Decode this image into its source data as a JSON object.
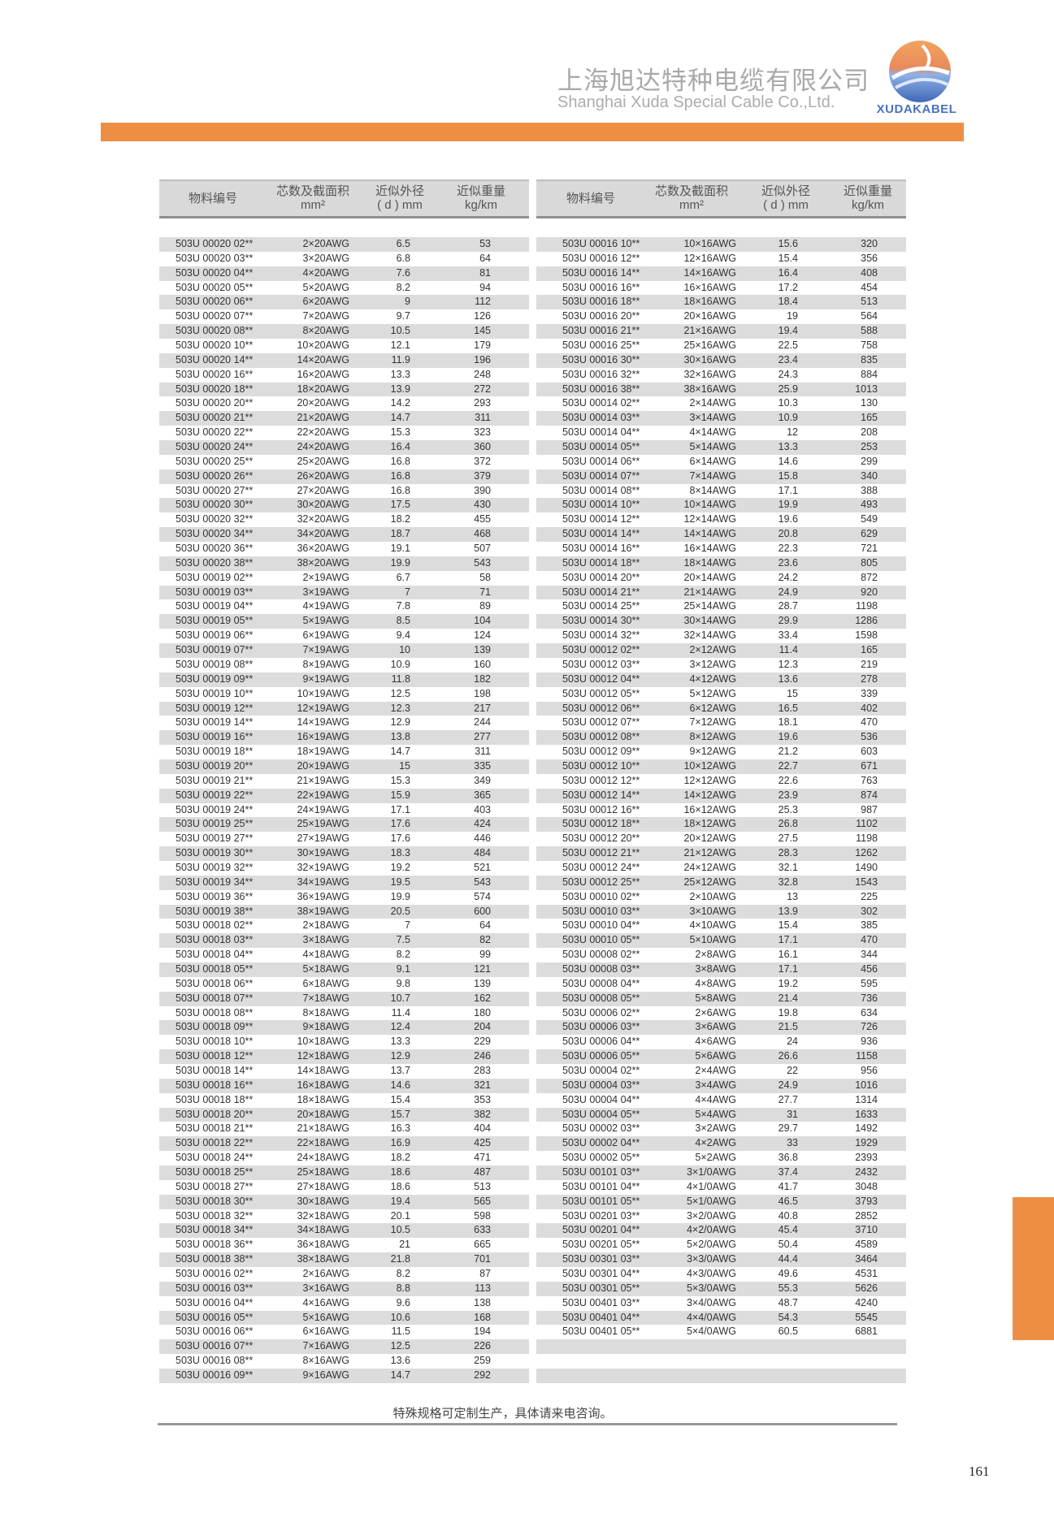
{
  "header": {
    "company_cn": "上海旭达特种电缆有限公司",
    "company_en": "Shanghai Xuda Special Cable Co.,Ltd.",
    "logo_text": "XUDAKABEL",
    "accent_color": "#ec8f45"
  },
  "table": {
    "columns": [
      {
        "line1": "物料编号",
        "line2": ""
      },
      {
        "line1": "芯数及截面积",
        "line2": "mm²"
      },
      {
        "line1": "近似外径",
        "line2": "( d ) mm"
      },
      {
        "line1": "近似重量",
        "line2": "kg/km"
      }
    ],
    "left_rows": [
      [
        "503U 00020 02**",
        "2×20AWG",
        "6.5",
        "53"
      ],
      [
        "503U 00020 03**",
        "3×20AWG",
        "6.8",
        "64"
      ],
      [
        "503U 00020 04**",
        "4×20AWG",
        "7.6",
        "81"
      ],
      [
        "503U 00020 05**",
        "5×20AWG",
        "8.2",
        "94"
      ],
      [
        "503U 00020 06**",
        "6×20AWG",
        "9",
        "112"
      ],
      [
        "503U 00020 07**",
        "7×20AWG",
        "9.7",
        "126"
      ],
      [
        "503U 00020 08**",
        "8×20AWG",
        "10.5",
        "145"
      ],
      [
        "503U 00020 10**",
        "10×20AWG",
        "12.1",
        "179"
      ],
      [
        "503U 00020 14**",
        "14×20AWG",
        "11.9",
        "196"
      ],
      [
        "503U 00020 16**",
        "16×20AWG",
        "13.3",
        "248"
      ],
      [
        "503U 00020 18**",
        "18×20AWG",
        "13.9",
        "272"
      ],
      [
        "503U 00020 20**",
        "20×20AWG",
        "14.2",
        "293"
      ],
      [
        "503U 00020 21**",
        "21×20AWG",
        "14.7",
        "311"
      ],
      [
        "503U 00020 22**",
        "22×20AWG",
        "15.3",
        "323"
      ],
      [
        "503U 00020 24**",
        "24×20AWG",
        "16.4",
        "360"
      ],
      [
        "503U 00020 25**",
        "25×20AWG",
        "16.8",
        "372"
      ],
      [
        "503U 00020 26**",
        "26×20AWG",
        "16.8",
        "379"
      ],
      [
        "503U 00020 27**",
        "27×20AWG",
        "16.8",
        "390"
      ],
      [
        "503U 00020 30**",
        "30×20AWG",
        "17.5",
        "430"
      ],
      [
        "503U 00020 32**",
        "32×20AWG",
        "18.2",
        "455"
      ],
      [
        "503U 00020 34**",
        "34×20AWG",
        "18.7",
        "468"
      ],
      [
        "503U 00020 36**",
        "36×20AWG",
        "19.1",
        "507"
      ],
      [
        "503U 00020 38**",
        "38×20AWG",
        "19.9",
        "543"
      ],
      [
        "503U 00019 02**",
        "2×19AWG",
        "6.7",
        "58"
      ],
      [
        "503U 00019 03**",
        "3×19AWG",
        "7",
        "71"
      ],
      [
        "503U 00019 04**",
        "4×19AWG",
        "7.8",
        "89"
      ],
      [
        "503U 00019 05**",
        "5×19AWG",
        "8.5",
        "104"
      ],
      [
        "503U 00019 06**",
        "6×19AWG",
        "9.4",
        "124"
      ],
      [
        "503U 00019 07**",
        "7×19AWG",
        "10",
        "139"
      ],
      [
        "503U 00019 08**",
        "8×19AWG",
        "10.9",
        "160"
      ],
      [
        "503U 00019 09**",
        "9×19AWG",
        "11.8",
        "182"
      ],
      [
        "503U 00019 10**",
        "10×19AWG",
        "12.5",
        "198"
      ],
      [
        "503U 00019 12**",
        "12×19AWG",
        "12.3",
        "217"
      ],
      [
        "503U 00019 14**",
        "14×19AWG",
        "12.9",
        "244"
      ],
      [
        "503U 00019 16**",
        "16×19AWG",
        "13.8",
        "277"
      ],
      [
        "503U 00019 18**",
        "18×19AWG",
        "14.7",
        "311"
      ],
      [
        "503U 00019 20**",
        "20×19AWG",
        "15",
        "335"
      ],
      [
        "503U 00019 21**",
        "21×19AWG",
        "15.3",
        "349"
      ],
      [
        "503U 00019 22**",
        "22×19AWG",
        "15.9",
        "365"
      ],
      [
        "503U 00019 24**",
        "24×19AWG",
        "17.1",
        "403"
      ],
      [
        "503U 00019 25**",
        "25×19AWG",
        "17.6",
        "424"
      ],
      [
        "503U 00019 27**",
        "27×19AWG",
        "17.6",
        "446"
      ],
      [
        "503U 00019 30**",
        "30×19AWG",
        "18.3",
        "484"
      ],
      [
        "503U 00019 32**",
        "32×19AWG",
        "19.2",
        "521"
      ],
      [
        "503U 00019 34**",
        "34×19AWG",
        "19.5",
        "543"
      ],
      [
        "503U 00019 36**",
        "36×19AWG",
        "19.9",
        "574"
      ],
      [
        "503U 00019 38**",
        "38×19AWG",
        "20.5",
        "600"
      ],
      [
        "503U 00018 02**",
        "2×18AWG",
        "7",
        "64"
      ],
      [
        "503U 00018 03**",
        "3×18AWG",
        "7.5",
        "82"
      ],
      [
        "503U 00018 04**",
        "4×18AWG",
        "8.2",
        "99"
      ],
      [
        "503U 00018 05**",
        "5×18AWG",
        "9.1",
        "121"
      ],
      [
        "503U 00018 06**",
        "6×18AWG",
        "9.8",
        "139"
      ],
      [
        "503U 00018 07**",
        "7×18AWG",
        "10.7",
        "162"
      ],
      [
        "503U 00018 08**",
        "8×18AWG",
        "11.4",
        "180"
      ],
      [
        "503U 00018 09**",
        "9×18AWG",
        "12.4",
        "204"
      ],
      [
        "503U 00018 10**",
        "10×18AWG",
        "13.3",
        "229"
      ],
      [
        "503U 00018 12**",
        "12×18AWG",
        "12.9",
        "246"
      ],
      [
        "503U 00018 14**",
        "14×18AWG",
        "13.7",
        "283"
      ],
      [
        "503U 00018 16**",
        "16×18AWG",
        "14.6",
        "321"
      ],
      [
        "503U 00018 18**",
        "18×18AWG",
        "15.4",
        "353"
      ],
      [
        "503U 00018 20**",
        "20×18AWG",
        "15.7",
        "382"
      ],
      [
        "503U 00018 21**",
        "21×18AWG",
        "16.3",
        "404"
      ],
      [
        "503U 00018 22**",
        "22×18AWG",
        "16.9",
        "425"
      ],
      [
        "503U 00018 24**",
        "24×18AWG",
        "18.2",
        "471"
      ],
      [
        "503U 00018 25**",
        "25×18AWG",
        "18.6",
        "487"
      ],
      [
        "503U 00018 27**",
        "27×18AWG",
        "18.6",
        "513"
      ],
      [
        "503U 00018 30**",
        "30×18AWG",
        "19.4",
        "565"
      ],
      [
        "503U 00018 32**",
        "32×18AWG",
        "20.1",
        "598"
      ],
      [
        "503U 00018 34**",
        "34×18AWG",
        "10.5",
        "633"
      ],
      [
        "503U 00018 36**",
        "36×18AWG",
        "21",
        "665"
      ],
      [
        "503U 00018 38**",
        "38×18AWG",
        "21.8",
        "701"
      ],
      [
        "503U 00016 02**",
        "2×16AWG",
        "8.2",
        "87"
      ],
      [
        "503U 00016 03**",
        "3×16AWG",
        "8.8",
        "113"
      ],
      [
        "503U 00016 04**",
        "4×16AWG",
        "9.6",
        "138"
      ],
      [
        "503U 00016 05**",
        "5×16AWG",
        "10.6",
        "168"
      ],
      [
        "503U 00016 06**",
        "6×16AWG",
        "11.5",
        "194"
      ],
      [
        "503U 00016 07**",
        "7×16AWG",
        "12.5",
        "226"
      ],
      [
        "503U 00016 08**",
        "8×16AWG",
        "13.6",
        "259"
      ],
      [
        "503U 00016 09**",
        "9×16AWG",
        "14.7",
        "292"
      ]
    ],
    "right_rows": [
      [
        "503U 00016 10**",
        "10×16AWG",
        "15.6",
        "320"
      ],
      [
        "503U 00016 12**",
        "12×16AWG",
        "15.4",
        "356"
      ],
      [
        "503U 00016 14**",
        "14×16AWG",
        "16.4",
        "408"
      ],
      [
        "503U 00016 16**",
        "16×16AWG",
        "17.2",
        "454"
      ],
      [
        "503U 00016 18**",
        "18×16AWG",
        "18.4",
        "513"
      ],
      [
        "503U 00016 20**",
        "20×16AWG",
        "19",
        "564"
      ],
      [
        "503U 00016 21**",
        "21×16AWG",
        "19.4",
        "588"
      ],
      [
        "503U 00016 25**",
        "25×16AWG",
        "22.5",
        "758"
      ],
      [
        "503U 00016 30**",
        "30×16AWG",
        "23.4",
        "835"
      ],
      [
        "503U 00016 32**",
        "32×16AWG",
        "24.3",
        "884"
      ],
      [
        "503U 00016 38**",
        "38×16AWG",
        "25.9",
        "1013"
      ],
      [
        "503U 00014 02**",
        "2×14AWG",
        "10.3",
        "130"
      ],
      [
        "503U 00014 03**",
        "3×14AWG",
        "10.9",
        "165"
      ],
      [
        "503U 00014 04**",
        "4×14AWG",
        "12",
        "208"
      ],
      [
        "503U 00014 05**",
        "5×14AWG",
        "13.3",
        "253"
      ],
      [
        "503U 00014 06**",
        "6×14AWG",
        "14.6",
        "299"
      ],
      [
        "503U 00014 07**",
        "7×14AWG",
        "15.8",
        "340"
      ],
      [
        "503U 00014 08**",
        "8×14AWG",
        "17.1",
        "388"
      ],
      [
        "503U 00014 10**",
        "10×14AWG",
        "19.9",
        "493"
      ],
      [
        "503U 00014 12**",
        "12×14AWG",
        "19.6",
        "549"
      ],
      [
        "503U 00014 14**",
        "14×14AWG",
        "20.8",
        "629"
      ],
      [
        "503U 00014 16**",
        "16×14AWG",
        "22.3",
        "721"
      ],
      [
        "503U 00014 18**",
        "18×14AWG",
        "23.6",
        "805"
      ],
      [
        "503U 00014 20**",
        "20×14AWG",
        "24.2",
        "872"
      ],
      [
        "503U 00014 21**",
        "21×14AWG",
        "24.9",
        "920"
      ],
      [
        "503U 00014 25**",
        "25×14AWG",
        "28.7",
        "1198"
      ],
      [
        "503U 00014 30**",
        "30×14AWG",
        "29.9",
        "1286"
      ],
      [
        "503U 00014 32**",
        "32×14AWG",
        "33.4",
        "1598"
      ],
      [
        "503U 00012 02**",
        "2×12AWG",
        "11.4",
        "165"
      ],
      [
        "503U 00012 03**",
        "3×12AWG",
        "12.3",
        "219"
      ],
      [
        "503U 00012 04**",
        "4×12AWG",
        "13.6",
        "278"
      ],
      [
        "503U 00012 05**",
        "5×12AWG",
        "15",
        "339"
      ],
      [
        "503U 00012 06**",
        "6×12AWG",
        "16.5",
        "402"
      ],
      [
        "503U 00012 07**",
        "7×12AWG",
        "18.1",
        "470"
      ],
      [
        "503U 00012 08**",
        "8×12AWG",
        "19.6",
        "536"
      ],
      [
        "503U 00012 09**",
        "9×12AWG",
        "21.2",
        "603"
      ],
      [
        "503U 00012 10**",
        "10×12AWG",
        "22.7",
        "671"
      ],
      [
        "503U 00012 12**",
        "12×12AWG",
        "22.6",
        "763"
      ],
      [
        "503U 00012 14**",
        "14×12AWG",
        "23.9",
        "874"
      ],
      [
        "503U 00012 16**",
        "16×12AWG",
        "25.3",
        "987"
      ],
      [
        "503U 00012 18**",
        "18×12AWG",
        "26.8",
        "1102"
      ],
      [
        "503U 00012 20**",
        "20×12AWG",
        "27.5",
        "1198"
      ],
      [
        "503U 00012 21**",
        "21×12AWG",
        "28.3",
        "1262"
      ],
      [
        "503U 00012 24**",
        "24×12AWG",
        "32.1",
        "1490"
      ],
      [
        "503U 00012 25**",
        "25×12AWG",
        "32.8",
        "1543"
      ],
      [
        "503U 00010 02**",
        "2×10AWG",
        "13",
        "225"
      ],
      [
        "503U 00010 03**",
        "3×10AWG",
        "13.9",
        "302"
      ],
      [
        "503U 00010 04**",
        "4×10AWG",
        "15.4",
        "385"
      ],
      [
        "503U 00010 05**",
        "5×10AWG",
        "17.1",
        "470"
      ],
      [
        "503U 00008 02**",
        "2×8AWG",
        "16.1",
        "344"
      ],
      [
        "503U 00008 03**",
        "3×8AWG",
        "17.1",
        "456"
      ],
      [
        "503U 00008 04**",
        "4×8AWG",
        "19.2",
        "595"
      ],
      [
        "503U 00008 05**",
        "5×8AWG",
        "21.4",
        "736"
      ],
      [
        "503U 00006 02**",
        "2×6AWG",
        "19.8",
        "634"
      ],
      [
        "503U 00006 03**",
        "3×6AWG",
        "21.5",
        "726"
      ],
      [
        "503U 00006 04**",
        "4×6AWG",
        "24",
        "936"
      ],
      [
        "503U 00006 05**",
        "5×6AWG",
        "26.6",
        "1158"
      ],
      [
        "503U 00004 02**",
        "2×4AWG",
        "22",
        "956"
      ],
      [
        "503U 00004 03**",
        "3×4AWG",
        "24.9",
        "1016"
      ],
      [
        "503U 00004 04**",
        "4×4AWG",
        "27.7",
        "1314"
      ],
      [
        "503U 00004 05**",
        "5×4AWG",
        "31",
        "1633"
      ],
      [
        "503U 00002 03**",
        "3×2AWG",
        "29.7",
        "1492"
      ],
      [
        "503U 00002 04**",
        "4×2AWG",
        "33",
        "1929"
      ],
      [
        "503U 00002 05**",
        "5×2AWG",
        "36.8",
        "2393"
      ],
      [
        "503U 00101 03**",
        "3×1/0AWG",
        "37.4",
        "2432"
      ],
      [
        "503U 00101 04**",
        "4×1/0AWG",
        "41.7",
        "3048"
      ],
      [
        "503U 00101 05**",
        "5×1/0AWG",
        "46.5",
        "3793"
      ],
      [
        "503U 00201 03**",
        "3×2/0AWG",
        "40.8",
        "2852"
      ],
      [
        "503U 00201 04**",
        "4×2/0AWG",
        "45.4",
        "3710"
      ],
      [
        "503U 00201 05**",
        "5×2/0AWG",
        "50.4",
        "4589"
      ],
      [
        "503U 00301 03**",
        "3×3/0AWG",
        "44.4",
        "3464"
      ],
      [
        "503U 00301 04**",
        "4×3/0AWG",
        "49.6",
        "4531"
      ],
      [
        "503U 00301 05**",
        "5×3/0AWG",
        "55.3",
        "5626"
      ],
      [
        "503U 00401 03**",
        "3×4/0AWG",
        "48.7",
        "4240"
      ],
      [
        "503U 00401 04**",
        "4×4/0AWG",
        "54.3",
        "5545"
      ],
      [
        "503U 00401 05**",
        "5×4/0AWG",
        "60.5",
        "6881"
      ],
      [
        "",
        "",
        "",
        ""
      ],
      [
        "",
        "",
        "",
        ""
      ],
      [
        "",
        "",
        "",
        ""
      ]
    ]
  },
  "footer": {
    "note": "特殊规格可定制生产，具体请来电咨询。",
    "page_number": "161"
  }
}
